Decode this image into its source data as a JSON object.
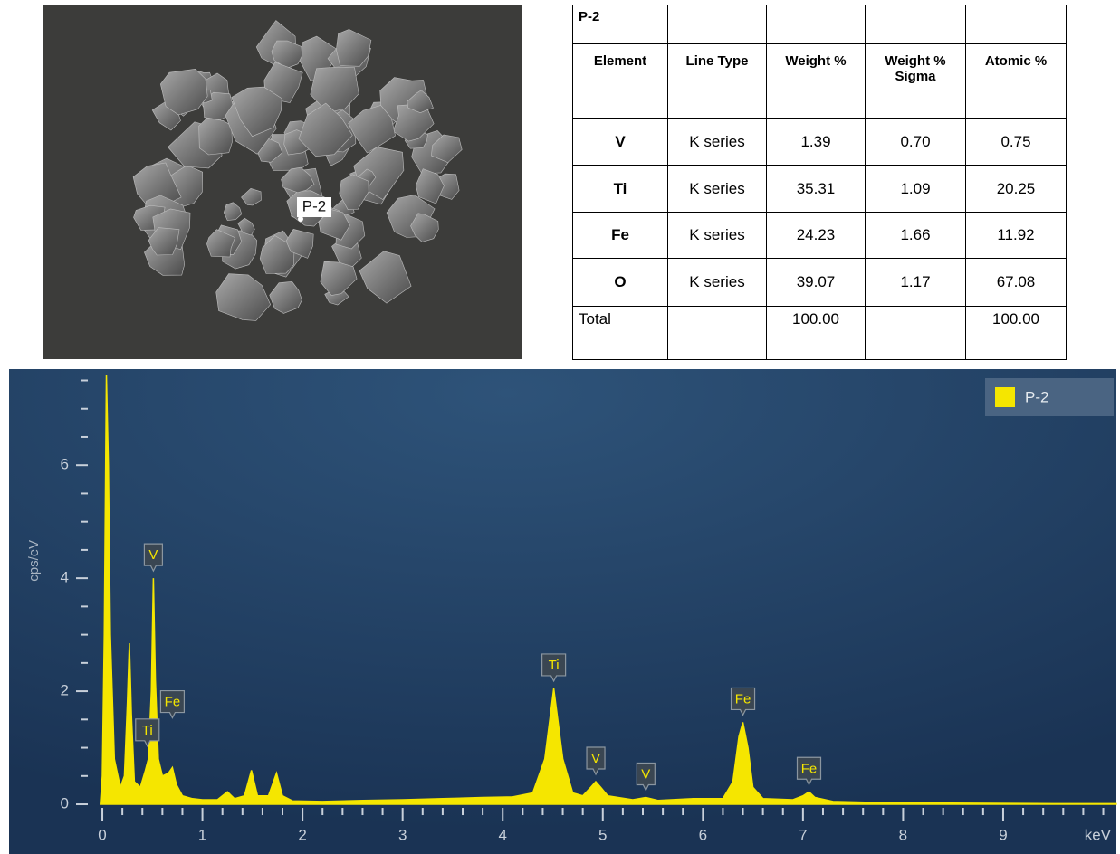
{
  "image": {
    "label": "P-2"
  },
  "table": {
    "title": "P-2",
    "header": [
      "Element",
      "Line Type",
      "Weight %",
      "Weight % Sigma",
      "Atomic %"
    ],
    "rows": [
      [
        "V",
        "K series",
        "1.39",
        "0.70",
        "0.75"
      ],
      [
        "Ti",
        "K series",
        "35.31",
        "1.09",
        "20.25"
      ],
      [
        "Fe",
        "K series",
        "24.23",
        "1.66",
        "11.92"
      ],
      [
        "O",
        "K series",
        "39.07",
        "1.17",
        "67.08"
      ],
      [
        "Total",
        null,
        "100.00",
        null,
        "100.00"
      ]
    ]
  },
  "chart_data": {
    "type": "area",
    "y_label": "cps/eV",
    "x_label": "keV",
    "color": "#f5e600",
    "legend": {
      "name": "P-2",
      "corner": "top-right"
    },
    "xlim": [
      -0.932,
      10.131
    ],
    "ylim": [
      -0.88,
      7.7
    ],
    "xticks": [
      0,
      1,
      2,
      3,
      4,
      5,
      6,
      7,
      8,
      9
    ],
    "xminorticks": [
      0.2,
      0.4,
      0.6,
      0.8,
      1.2,
      1.4,
      1.6,
      1.8,
      2.2,
      2.4,
      2.6,
      2.8,
      3.2,
      3.4,
      3.6,
      3.8,
      4.2,
      4.4,
      4.6,
      4.8,
      5.2,
      5.4,
      5.6,
      5.8,
      6.2,
      6.4,
      6.6,
      6.8,
      7.2,
      7.4,
      7.6,
      7.8,
      8.2,
      8.4,
      8.6,
      8.8,
      9.2,
      9.4,
      9.6,
      9.8,
      10
    ],
    "yticks": [
      0,
      2,
      4,
      6
    ],
    "yminorticks": [
      0.5,
      1,
      1.5,
      2.5,
      3,
      3.5,
      4.5,
      5,
      5.5,
      6.5,
      7,
      7.5
    ],
    "x": [
      -0.02,
      0.0,
      0.02,
      0.04,
      0.06,
      0.08,
      0.12,
      0.18,
      0.22,
      0.25,
      0.27,
      0.29,
      0.32,
      0.38,
      0.43,
      0.46,
      0.49,
      0.51,
      0.53,
      0.56,
      0.6,
      0.66,
      0.7,
      0.74,
      0.8,
      0.9,
      1.0,
      1.15,
      1.25,
      1.32,
      1.42,
      1.49,
      1.55,
      1.66,
      1.74,
      1.8,
      1.9,
      2.2,
      2.6,
      3.0,
      3.4,
      3.8,
      4.1,
      4.3,
      4.42,
      4.51,
      4.6,
      4.7,
      4.8,
      4.88,
      4.93,
      4.98,
      5.05,
      5.3,
      5.43,
      5.55,
      5.9,
      6.2,
      6.3,
      6.36,
      6.4,
      6.45,
      6.5,
      6.6,
      6.9,
      7.0,
      7.06,
      7.12,
      7.3,
      7.8,
      8.5,
      9.5,
      10.13
    ],
    "values": [
      0,
      0.5,
      3.0,
      7.6,
      6.0,
      3.0,
      0.8,
      0.3,
      0.5,
      1.8,
      2.85,
      1.6,
      0.4,
      0.3,
      0.6,
      0.8,
      2.0,
      4.0,
      2.2,
      0.8,
      0.5,
      0.55,
      0.65,
      0.35,
      0.15,
      0.1,
      0.08,
      0.08,
      0.22,
      0.1,
      0.15,
      0.6,
      0.15,
      0.15,
      0.55,
      0.15,
      0.06,
      0.05,
      0.07,
      0.08,
      0.1,
      0.12,
      0.13,
      0.2,
      0.8,
      2.05,
      0.8,
      0.2,
      0.15,
      0.3,
      0.4,
      0.3,
      0.15,
      0.08,
      0.12,
      0.07,
      0.1,
      0.1,
      0.4,
      1.2,
      1.45,
      1.0,
      0.3,
      0.1,
      0.08,
      0.15,
      0.22,
      0.12,
      0.05,
      0.03,
      0.02,
      0.01,
      0.01
    ],
    "annotations": [
      {
        "text": "V",
        "x": 0.51,
        "y": 4.0
      },
      {
        "text": "Ti",
        "x": 0.45,
        "y": 0.9
      },
      {
        "text": "Fe",
        "x": 0.7,
        "y": 1.4
      },
      {
        "text": "Ti",
        "x": 4.51,
        "y": 2.05
      },
      {
        "text": "V",
        "x": 4.93,
        "y": 0.4
      },
      {
        "text": "V",
        "x": 5.43,
        "y": 0.12
      },
      {
        "text": "Fe",
        "x": 6.4,
        "y": 1.45
      },
      {
        "text": "Fe",
        "x": 7.06,
        "y": 0.22
      }
    ]
  }
}
